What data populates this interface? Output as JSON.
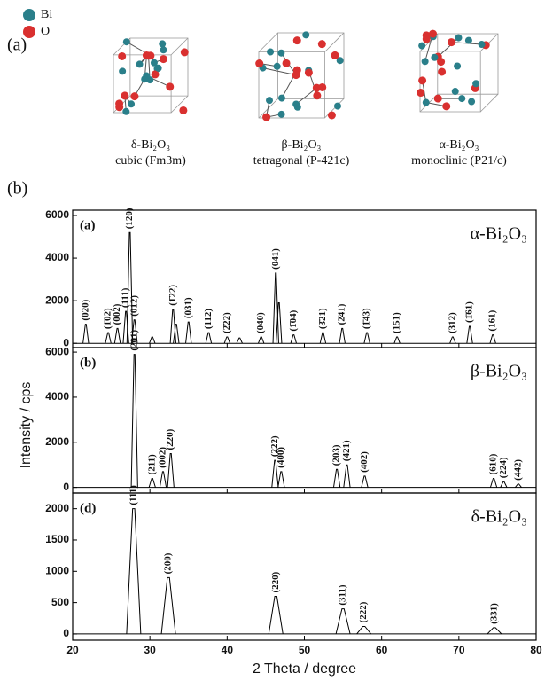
{
  "figure": {
    "part_a_label": "(a)",
    "part_b_label": "(b)",
    "atom_legend": [
      "Bi",
      "O"
    ],
    "structures": [
      {
        "name": "δ-Bi₂O₃",
        "system": "cubic (Fm3m)"
      },
      {
        "name": "β-Bi₂O₃",
        "system": "tetragonal (P-421c)"
      },
      {
        "name": "α-Bi₂O₃",
        "system": "monoclinic (P21/c)"
      }
    ]
  },
  "chart_data": [
    {
      "type": "xrd",
      "panel_label": "(a)",
      "phase": "α-Bi₂O₃",
      "color": "#000000",
      "x": [
        21.7,
        24.6,
        25.8,
        26.9,
        27.4,
        28.0,
        30.3,
        33.0,
        33.4,
        35.0,
        37.6,
        40.0,
        41.6,
        44.4,
        46.3,
        46.7,
        48.6,
        52.4,
        54.9,
        58.1,
        62.0,
        69.2,
        71.4,
        74.4
      ],
      "values": [
        900,
        500,
        700,
        1500,
        5200,
        1100,
        300,
        1600,
        900,
        1000,
        500,
        300,
        250,
        300,
        3300,
        1900,
        400,
        500,
        700,
        500,
        300,
        300,
        800,
        400
      ],
      "peak_labels": [
        "(020)",
        "(1̄02)",
        "(002)",
        "(111)",
        "(120)",
        "(012)",
        null,
        "(1̄22)",
        null,
        "(031)",
        "(112)",
        "(2̄22)",
        null,
        "(040)",
        "(041)",
        null,
        "(1̄04)",
        "(3̄21)",
        "(2̄41)",
        "(1̄43)",
        "(151)",
        "(312)",
        "(1̄61)",
        "(161)"
      ],
      "ylim": [
        -200,
        6250
      ],
      "yticks": [
        0,
        2000,
        4000,
        6000
      ]
    },
    {
      "type": "xrd",
      "panel_label": "(b)",
      "phase": "β-Bi₂O₃",
      "color": "#000000",
      "y_label": "Intensity / cps",
      "x": [
        28.0,
        30.3,
        31.7,
        32.7,
        46.2,
        47.0,
        54.2,
        55.5,
        57.8,
        74.5,
        75.8,
        77.7
      ],
      "values": [
        5900,
        400,
        700,
        1500,
        1200,
        700,
        800,
        1000,
        500,
        400,
        250,
        150
      ],
      "peak_labels": [
        "(201)",
        "(211)",
        "(002)",
        "(220)",
        "(222)",
        "(400)",
        "(203)",
        "(421)",
        "(402)",
        "(610)",
        "(224)",
        "(442)"
      ],
      "ylim": [
        -250,
        6200
      ],
      "yticks": [
        0,
        2000,
        4000,
        6000
      ]
    },
    {
      "type": "xrd",
      "panel_label": "(d)",
      "phase": "δ-Bi₂O₃",
      "color": "#000000",
      "x_label": "2 Theta / degree",
      "x": [
        27.9,
        32.4,
        46.3,
        55.0,
        57.7,
        74.6
      ],
      "values": [
        2000,
        900,
        600,
        400,
        120,
        100
      ],
      "peak_labels": [
        "(111)",
        "(200)",
        "(220)",
        "(311)",
        "(222)",
        "(331)"
      ],
      "ylim": [
        -100,
        2250
      ],
      "yticks": [
        0,
        500,
        1000,
        1500,
        2000
      ],
      "xlim": [
        20,
        80
      ],
      "xticks": [
        20,
        30,
        40,
        50,
        60,
        70,
        80
      ]
    }
  ]
}
